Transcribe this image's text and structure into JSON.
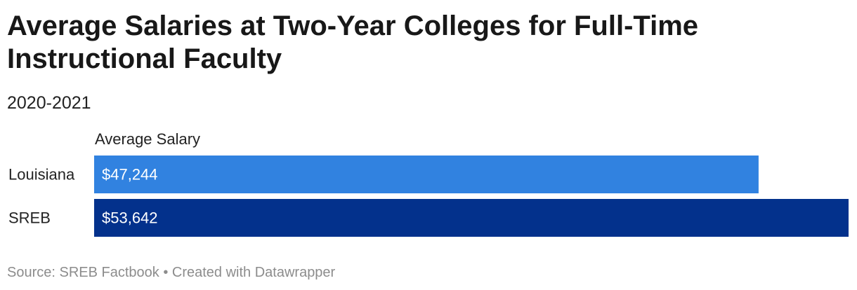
{
  "header": {
    "title": "Average Salaries at Two-Year Colleges for Full-Time Instructional Faculty",
    "subtitle": "2020-2021"
  },
  "chart_data": {
    "type": "bar",
    "orientation": "horizontal",
    "title": "Average Salaries at Two-Year Colleges for Full-Time Instructional Faculty",
    "subtitle": "2020-2021",
    "column_header": "Average Salary",
    "categories": [
      "Louisiana",
      "SREB"
    ],
    "values": [
      47244,
      53642
    ],
    "value_labels": [
      "$47,244",
      "$53,642"
    ],
    "colors": [
      "#3182e0",
      "#03318c"
    ],
    "xlim": [
      0,
      53642
    ],
    "grid": false,
    "legend": "none"
  },
  "footer": {
    "source": "Source: SREB Factbook • Created with Datawrapper"
  }
}
